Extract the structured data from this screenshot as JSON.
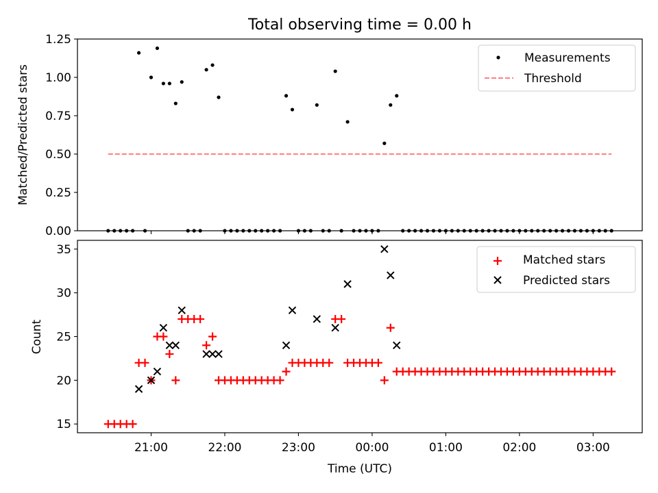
{
  "figure": {
    "title": "Total observing time = 0.00 h",
    "xlabel": "Time (UTC)"
  },
  "colors": {
    "measurement": "#000000",
    "threshold": "#ff7f7f",
    "matched": "#ff0000",
    "predicted": "#000000"
  },
  "chart_data": [
    {
      "type": "scatter",
      "panel": "top",
      "xlabel": "",
      "ylabel": "Matched/Predicted stars",
      "ylim": [
        0,
        1.25
      ],
      "yticks": [
        0,
        0.25,
        0.5,
        0.75,
        1.0,
        1.25
      ],
      "ytick_labels": [
        "0.00",
        "0.25",
        "0.50",
        "0.75",
        "1.00",
        "1.25"
      ],
      "xticks": [
        "21:00",
        "22:00",
        "23:00",
        "00:00",
        "01:00",
        "02:00",
        "03:00"
      ],
      "xtick_labels": [
        "",
        "",
        "",
        "",
        "",
        "",
        ""
      ],
      "legend": {
        "position": "upper right",
        "entries": [
          "Measurements",
          "Threshold"
        ]
      },
      "series": [
        {
          "name": "Measurements",
          "marker": "dot",
          "color": "#000000",
          "points": [
            [
              "20:25",
              0
            ],
            [
              "20:30",
              0
            ],
            [
              "20:35",
              0
            ],
            [
              "20:40",
              0
            ],
            [
              "20:45",
              0
            ],
            [
              "20:50",
              1.16
            ],
            [
              "20:55",
              0
            ],
            [
              "21:00",
              1.0
            ],
            [
              "21:05",
              1.19
            ],
            [
              "21:10",
              0.96
            ],
            [
              "21:15",
              0.96
            ],
            [
              "21:20",
              0.83
            ],
            [
              "21:25",
              0.97
            ],
            [
              "21:30",
              0
            ],
            [
              "21:35",
              0
            ],
            [
              "21:40",
              0
            ],
            [
              "21:45",
              1.05
            ],
            [
              "21:50",
              1.08
            ],
            [
              "21:55",
              0.87
            ],
            [
              "22:00",
              0
            ],
            [
              "22:05",
              0
            ],
            [
              "22:10",
              0
            ],
            [
              "22:15",
              0
            ],
            [
              "22:20",
              0
            ],
            [
              "22:25",
              0
            ],
            [
              "22:30",
              0
            ],
            [
              "22:35",
              0
            ],
            [
              "22:40",
              0
            ],
            [
              "22:45",
              0
            ],
            [
              "22:50",
              0.88
            ],
            [
              "22:55",
              0.79
            ],
            [
              "23:00",
              0
            ],
            [
              "23:05",
              0
            ],
            [
              "23:10",
              0
            ],
            [
              "23:15",
              0.82
            ],
            [
              "23:20",
              0
            ],
            [
              "23:25",
              0
            ],
            [
              "23:30",
              1.04
            ],
            [
              "23:35",
              0
            ],
            [
              "23:40",
              0.71
            ],
            [
              "23:45",
              0
            ],
            [
              "23:50",
              0
            ],
            [
              "23:55",
              0
            ],
            [
              "00:00",
              0
            ],
            [
              "00:05",
              0
            ],
            [
              "00:10",
              0.57
            ],
            [
              "00:15",
              0.82
            ],
            [
              "00:20",
              0.88
            ],
            [
              "00:25",
              0
            ],
            [
              "00:30",
              0
            ],
            [
              "00:35",
              0
            ],
            [
              "00:40",
              0
            ],
            [
              "00:45",
              0
            ],
            [
              "00:50",
              0
            ],
            [
              "00:55",
              0
            ],
            [
              "01:00",
              0
            ],
            [
              "01:05",
              0
            ],
            [
              "01:10",
              0
            ],
            [
              "01:15",
              0
            ],
            [
              "01:20",
              0
            ],
            [
              "01:25",
              0
            ],
            [
              "01:30",
              0
            ],
            [
              "01:35",
              0
            ],
            [
              "01:40",
              0
            ],
            [
              "01:45",
              0
            ],
            [
              "01:50",
              0
            ],
            [
              "01:55",
              0
            ],
            [
              "02:00",
              0
            ],
            [
              "02:05",
              0
            ],
            [
              "02:10",
              0
            ],
            [
              "02:15",
              0
            ],
            [
              "02:20",
              0
            ],
            [
              "02:25",
              0
            ],
            [
              "02:30",
              0
            ],
            [
              "02:35",
              0
            ],
            [
              "02:40",
              0
            ],
            [
              "02:45",
              0
            ],
            [
              "02:50",
              0
            ],
            [
              "02:55",
              0
            ],
            [
              "03:00",
              0
            ],
            [
              "03:05",
              0
            ],
            [
              "03:10",
              0
            ],
            [
              "03:15",
              0
            ]
          ]
        },
        {
          "name": "Threshold",
          "style": "dashed-line",
          "color": "#ff7f7f",
          "x_range": [
            "20:25",
            "03:15"
          ],
          "value": 0.5
        }
      ]
    },
    {
      "type": "scatter",
      "panel": "bottom",
      "xlabel": "Time (UTC)",
      "ylabel": "Count",
      "ylim": [
        14,
        36
      ],
      "yticks": [
        15,
        20,
        25,
        30,
        35
      ],
      "ytick_labels": [
        "15",
        "20",
        "25",
        "30",
        "35"
      ],
      "xticks": [
        "21:00",
        "22:00",
        "23:00",
        "00:00",
        "01:00",
        "02:00",
        "03:00"
      ],
      "xtick_labels": [
        "21:00",
        "22:00",
        "23:00",
        "00:00",
        "01:00",
        "02:00",
        "03:00"
      ],
      "legend": {
        "position": "upper right",
        "entries": [
          "Matched stars",
          "Predicted stars"
        ]
      },
      "series": [
        {
          "name": "Matched stars",
          "marker": "plus",
          "color": "#ff0000",
          "points": [
            [
              "20:25",
              15
            ],
            [
              "20:30",
              15
            ],
            [
              "20:35",
              15
            ],
            [
              "20:40",
              15
            ],
            [
              "20:45",
              15
            ],
            [
              "20:50",
              22
            ],
            [
              "20:55",
              22
            ],
            [
              "21:00",
              20
            ],
            [
              "21:05",
              25
            ],
            [
              "21:10",
              25
            ],
            [
              "21:15",
              23
            ],
            [
              "21:20",
              20
            ],
            [
              "21:25",
              27
            ],
            [
              "21:30",
              27
            ],
            [
              "21:35",
              27
            ],
            [
              "21:40",
              27
            ],
            [
              "21:45",
              24
            ],
            [
              "21:50",
              25
            ],
            [
              "21:55",
              20
            ],
            [
              "22:00",
              20
            ],
            [
              "22:05",
              20
            ],
            [
              "22:10",
              20
            ],
            [
              "22:15",
              20
            ],
            [
              "22:20",
              20
            ],
            [
              "22:25",
              20
            ],
            [
              "22:30",
              20
            ],
            [
              "22:35",
              20
            ],
            [
              "22:40",
              20
            ],
            [
              "22:45",
              20
            ],
            [
              "22:50",
              21
            ],
            [
              "22:55",
              22
            ],
            [
              "23:00",
              22
            ],
            [
              "23:05",
              22
            ],
            [
              "23:10",
              22
            ],
            [
              "23:15",
              22
            ],
            [
              "23:20",
              22
            ],
            [
              "23:25",
              22
            ],
            [
              "23:30",
              27
            ],
            [
              "23:35",
              27
            ],
            [
              "23:40",
              22
            ],
            [
              "23:45",
              22
            ],
            [
              "23:50",
              22
            ],
            [
              "23:55",
              22
            ],
            [
              "00:00",
              22
            ],
            [
              "00:05",
              22
            ],
            [
              "00:10",
              20
            ],
            [
              "00:15",
              26
            ],
            [
              "00:20",
              21
            ],
            [
              "00:25",
              21
            ],
            [
              "00:30",
              21
            ],
            [
              "00:35",
              21
            ],
            [
              "00:40",
              21
            ],
            [
              "00:45",
              21
            ],
            [
              "00:50",
              21
            ],
            [
              "00:55",
              21
            ],
            [
              "01:00",
              21
            ],
            [
              "01:05",
              21
            ],
            [
              "01:10",
              21
            ],
            [
              "01:15",
              21
            ],
            [
              "01:20",
              21
            ],
            [
              "01:25",
              21
            ],
            [
              "01:30",
              21
            ],
            [
              "01:35",
              21
            ],
            [
              "01:40",
              21
            ],
            [
              "01:45",
              21
            ],
            [
              "01:50",
              21
            ],
            [
              "01:55",
              21
            ],
            [
              "02:00",
              21
            ],
            [
              "02:05",
              21
            ],
            [
              "02:10",
              21
            ],
            [
              "02:15",
              21
            ],
            [
              "02:20",
              21
            ],
            [
              "02:25",
              21
            ],
            [
              "02:30",
              21
            ],
            [
              "02:35",
              21
            ],
            [
              "02:40",
              21
            ],
            [
              "02:45",
              21
            ],
            [
              "02:50",
              21
            ],
            [
              "02:55",
              21
            ],
            [
              "03:00",
              21
            ],
            [
              "03:05",
              21
            ],
            [
              "03:10",
              21
            ],
            [
              "03:15",
              21
            ]
          ]
        },
        {
          "name": "Predicted stars",
          "marker": "x",
          "color": "#000000",
          "points": [
            [
              "20:50",
              19
            ],
            [
              "21:00",
              20
            ],
            [
              "21:05",
              21
            ],
            [
              "21:10",
              26
            ],
            [
              "21:15",
              24
            ],
            [
              "21:20",
              24
            ],
            [
              "21:25",
              28
            ],
            [
              "21:45",
              23
            ],
            [
              "21:50",
              23
            ],
            [
              "21:55",
              23
            ],
            [
              "22:50",
              24
            ],
            [
              "22:55",
              28
            ],
            [
              "23:15",
              27
            ],
            [
              "23:30",
              26
            ],
            [
              "23:40",
              31
            ],
            [
              "00:10",
              35
            ],
            [
              "00:15",
              32
            ],
            [
              "00:20",
              24
            ]
          ]
        }
      ]
    }
  ]
}
